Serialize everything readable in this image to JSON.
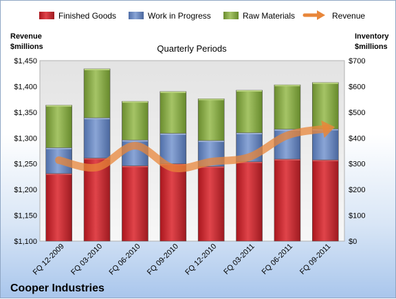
{
  "chart_data": {
    "type": "bar",
    "subtitle": "Quarterly Periods",
    "company": "Cooper Industries",
    "categories": [
      "FQ 12-2009",
      "FQ 03-2010",
      "FQ 06-2010",
      "FQ 09-2010",
      "FQ 12-2010",
      "FQ 03-2011",
      "FQ 06-2011",
      "FQ 09-2011"
    ],
    "stacked": true,
    "series": [
      {
        "name": "Finished Goods",
        "color": "#c0262d",
        "axis": "right",
        "values": [
          262,
          322,
          292,
          300,
          290,
          308,
          318,
          315
        ]
      },
      {
        "name": "Work in Progress",
        "color": "#6d8cc4",
        "axis": "right",
        "values": [
          100,
          156,
          100,
          118,
          100,
          112,
          116,
          120
        ]
      },
      {
        "name": "Raw Materials",
        "color": "#88ab45",
        "axis": "right",
        "values": [
          165,
          190,
          150,
          162,
          162,
          165,
          172,
          180
        ]
      },
      {
        "name": "Revenue",
        "type": "line",
        "color": "#e8863a",
        "axis": "left",
        "values": [
          1257,
          1243,
          1285,
          1242,
          1254,
          1263,
          1305,
          1318
        ]
      }
    ],
    "left_axis": {
      "label_line1": "Revenue",
      "label_line2": "$millions",
      "min": 1100,
      "max": 1450,
      "step": 50,
      "ticks": [
        "$1,100",
        "$1,150",
        "$1,200",
        "$1,250",
        "$1,300",
        "$1,350",
        "$1,400",
        "$1,450"
      ]
    },
    "right_axis": {
      "label_line1": "Inventory",
      "label_line2": "$millions",
      "min": 0,
      "max": 700,
      "step": 100,
      "ticks": [
        "$0",
        "$100",
        "$200",
        "$300",
        "$400",
        "$500",
        "$600",
        "$700"
      ]
    },
    "legend_position": "top",
    "grid": false
  }
}
